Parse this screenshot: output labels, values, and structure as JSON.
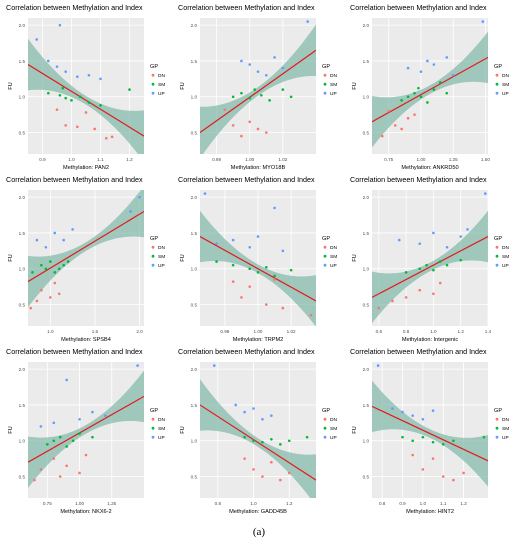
{
  "caption": "(a)",
  "legend": {
    "title": "GP",
    "labels": [
      "DN",
      "SM",
      "UP"
    ]
  },
  "colors": {
    "DN": "#F8766D",
    "SM": "#00BA38",
    "UP": "#619CFF",
    "fit": "#E41A1C",
    "band": "#7FB8A8",
    "panel_bg": "#EBEBEB",
    "grid": "#FFFFFF"
  },
  "chart_data": [
    {
      "type": "scatter",
      "title": "Correlation between Methylation and Index",
      "xlabel": "Methylation: PAN2",
      "ylabel": "FU",
      "xlim": [
        0.85,
        1.25
      ],
      "ylim": [
        0.2,
        2.1
      ],
      "xticks": [
        "0.9",
        "1.0",
        "1.1",
        "1.2"
      ],
      "yticks": [
        "0.5",
        "1.0",
        "1.5",
        "2.0"
      ],
      "fit": [
        [
          0.85,
          1.45
        ],
        [
          1.25,
          0.45
        ]
      ],
      "points": {
        "DN": [
          [
            0.95,
            0.82
          ],
          [
            1.02,
            0.58
          ],
          [
            1.05,
            0.78
          ],
          [
            1.08,
            0.55
          ],
          [
            1.12,
            0.42
          ],
          [
            1.14,
            0.44
          ],
          [
            0.98,
            0.6
          ]
        ],
        "SM": [
          [
            0.92,
            1.05
          ],
          [
            0.96,
            1.02
          ],
          [
            0.98,
            0.98
          ],
          [
            1.0,
            0.95
          ],
          [
            1.03,
            1.0
          ],
          [
            1.06,
            0.92
          ],
          [
            1.1,
            0.88
          ],
          [
            1.2,
            1.1
          ],
          [
            0.97,
            1.12
          ]
        ],
        "UP": [
          [
            0.88,
            1.8
          ],
          [
            0.92,
            1.5
          ],
          [
            0.95,
            1.42
          ],
          [
            0.98,
            1.35
          ],
          [
            1.02,
            1.28
          ],
          [
            1.06,
            1.3
          ],
          [
            1.1,
            1.25
          ],
          [
            0.96,
            2.0
          ]
        ]
      }
    },
    {
      "type": "scatter",
      "title": "Correlation between Methylation and Index",
      "xlabel": "Methylation: MYO18B",
      "ylabel": "FU",
      "xlim": [
        0.97,
        1.04
      ],
      "ylim": [
        0.2,
        2.1
      ],
      "xticks": [
        "0.98",
        "1.00",
        "1.02"
      ],
      "yticks": [
        "0.5",
        "1.0",
        "1.5",
        "2.0"
      ],
      "fit": [
        [
          0.97,
          0.5
        ],
        [
          1.04,
          1.65
        ]
      ],
      "points": {
        "DN": [
          [
            0.985,
            0.82
          ],
          [
            0.99,
            0.6
          ],
          [
            0.995,
            0.45
          ],
          [
            1.0,
            0.65
          ],
          [
            1.005,
            0.55
          ],
          [
            1.01,
            0.5
          ]
        ],
        "SM": [
          [
            0.99,
            1.0
          ],
          [
            0.995,
            1.05
          ],
          [
            1.0,
            0.98
          ],
          [
            1.003,
            1.1
          ],
          [
            1.007,
            1.02
          ],
          [
            1.012,
            0.95
          ],
          [
            1.02,
            1.1
          ],
          [
            1.025,
            1.0
          ]
        ],
        "UP": [
          [
            0.995,
            1.5
          ],
          [
            1.0,
            1.45
          ],
          [
            1.005,
            1.35
          ],
          [
            1.01,
            1.3
          ],
          [
            1.015,
            1.55
          ],
          [
            1.02,
            1.4
          ],
          [
            1.035,
            2.05
          ]
        ]
      }
    },
    {
      "type": "scatter",
      "title": "Correlation between Methylation and Index",
      "xlabel": "Methylation: ANKRD50",
      "ylabel": "FU",
      "xlim": [
        0.62,
        1.52
      ],
      "ylim": [
        0.2,
        2.1
      ],
      "xticks": [
        "0.75",
        "1.00",
        "1.25",
        "1.50"
      ],
      "yticks": [
        "0.5",
        "1.0",
        "1.5",
        "2.0"
      ],
      "fit": [
        [
          0.62,
          0.65
        ],
        [
          1.52,
          1.55
        ]
      ],
      "points": {
        "DN": [
          [
            0.7,
            0.45
          ],
          [
            0.8,
            0.6
          ],
          [
            0.85,
            0.55
          ],
          [
            0.9,
            0.7
          ],
          [
            0.95,
            0.75
          ],
          [
            0.75,
            0.8
          ]
        ],
        "SM": [
          [
            0.85,
            0.95
          ],
          [
            0.9,
            1.0
          ],
          [
            0.95,
            1.05
          ],
          [
            1.0,
            1.0
          ],
          [
            1.05,
            0.92
          ],
          [
            1.1,
            1.1
          ],
          [
            1.15,
            1.2
          ],
          [
            1.2,
            1.05
          ],
          [
            0.98,
            1.12
          ]
        ],
        "UP": [
          [
            0.9,
            1.4
          ],
          [
            1.0,
            1.35
          ],
          [
            1.05,
            1.5
          ],
          [
            1.1,
            1.45
          ],
          [
            1.2,
            1.55
          ],
          [
            1.25,
            1.3
          ],
          [
            1.48,
            2.05
          ]
        ]
      }
    },
    {
      "type": "scatter",
      "title": "Correlation between Methylation and Index",
      "xlabel": "Methylation: SPSB4",
      "ylabel": "FU",
      "xlim": [
        0.75,
        2.05
      ],
      "ylim": [
        0.2,
        2.1
      ],
      "xticks": [
        "1.0",
        "1.5",
        "2.0"
      ],
      "yticks": [
        "0.5",
        "1.0",
        "1.5",
        "2.0"
      ],
      "fit": [
        [
          0.75,
          0.82
        ],
        [
          2.05,
          1.8
        ]
      ],
      "points": {
        "DN": [
          [
            0.78,
            0.45
          ],
          [
            0.85,
            0.55
          ],
          [
            0.9,
            0.7
          ],
          [
            1.0,
            0.6
          ],
          [
            1.05,
            0.8
          ],
          [
            1.1,
            0.65
          ]
        ],
        "SM": [
          [
            0.8,
            0.95
          ],
          [
            0.9,
            1.05
          ],
          [
            0.95,
            1.0
          ],
          [
            1.0,
            1.1
          ],
          [
            1.05,
            0.95
          ],
          [
            1.1,
            1.0
          ],
          [
            1.15,
            1.05
          ],
          [
            1.2,
            1.1
          ]
        ],
        "UP": [
          [
            0.85,
            1.4
          ],
          [
            0.95,
            1.3
          ],
          [
            1.05,
            1.5
          ],
          [
            1.15,
            1.4
          ],
          [
            1.25,
            1.55
          ],
          [
            1.9,
            1.8
          ],
          [
            2.0,
            2.0
          ]
        ]
      }
    },
    {
      "type": "scatter",
      "title": "Correlation between Methylation and Index",
      "xlabel": "Methylation: TRPM2",
      "ylabel": "FU",
      "xlim": [
        0.965,
        1.035
      ],
      "ylim": [
        0.2,
        2.1
      ],
      "xticks": [
        "0.98",
        "1.00",
        "1.02"
      ],
      "yticks": [
        "0.5",
        "1.0",
        "1.5",
        "2.0"
      ],
      "fit": [
        [
          0.965,
          1.45
        ],
        [
          1.035,
          0.55
        ]
      ],
      "points": {
        "DN": [
          [
            0.985,
            0.82
          ],
          [
            0.99,
            0.6
          ],
          [
            0.995,
            0.75
          ],
          [
            1.005,
            0.5
          ],
          [
            1.01,
            0.85
          ],
          [
            1.015,
            0.45
          ],
          [
            1.032,
            0.35
          ]
        ],
        "SM": [
          [
            0.975,
            1.1
          ],
          [
            0.985,
            1.05
          ],
          [
            0.995,
            1.0
          ],
          [
            1.0,
            0.95
          ],
          [
            1.005,
            1.02
          ],
          [
            1.01,
            0.9
          ],
          [
            1.02,
            0.98
          ]
        ],
        "UP": [
          [
            0.968,
            2.05
          ],
          [
            0.975,
            1.35
          ],
          [
            0.985,
            1.4
          ],
          [
            0.995,
            1.3
          ],
          [
            1.0,
            1.45
          ],
          [
            1.01,
            1.85
          ],
          [
            1.015,
            1.25
          ]
        ]
      }
    },
    {
      "type": "scatter",
      "title": "Correlation between Methylation and Index",
      "xlabel": "Methylation: Intergenic",
      "ylabel": "FU",
      "xlim": [
        0.55,
        1.4
      ],
      "ylim": [
        0.2,
        2.1
      ],
      "xticks": [
        "0.6",
        "0.8",
        "1.0",
        "1.2",
        "1.4"
      ],
      "yticks": [
        "0.5",
        "1.0",
        "1.5",
        "2.0"
      ],
      "fit": [
        [
          0.55,
          0.6
        ],
        [
          1.4,
          1.45
        ]
      ],
      "points": {
        "DN": [
          [
            0.6,
            0.45
          ],
          [
            0.7,
            0.55
          ],
          [
            0.8,
            0.6
          ],
          [
            0.9,
            0.7
          ],
          [
            1.0,
            0.65
          ],
          [
            1.05,
            0.8
          ]
        ],
        "SM": [
          [
            0.8,
            0.95
          ],
          [
            0.9,
            1.0
          ],
          [
            0.95,
            1.05
          ],
          [
            1.0,
            0.98
          ],
          [
            1.05,
            1.1
          ],
          [
            1.1,
            1.05
          ],
          [
            1.2,
            1.12
          ]
        ],
        "UP": [
          [
            0.75,
            1.4
          ],
          [
            0.9,
            1.35
          ],
          [
            1.0,
            1.5
          ],
          [
            1.1,
            1.3
          ],
          [
            1.2,
            1.45
          ],
          [
            1.25,
            1.55
          ],
          [
            1.38,
            2.05
          ]
        ]
      }
    },
    {
      "type": "scatter",
      "title": "Correlation between Methylation and Index",
      "xlabel": "Methylation: NKX6-2",
      "ylabel": "FU",
      "xlim": [
        0.6,
        1.5
      ],
      "ylim": [
        0.2,
        2.1
      ],
      "xticks": [
        "0.75",
        "1.00",
        "1.25"
      ],
      "yticks": [
        "0.5",
        "1.0",
        "1.5",
        "2.0"
      ],
      "fit": [
        [
          0.6,
          0.7
        ],
        [
          1.5,
          1.62
        ]
      ],
      "points": {
        "DN": [
          [
            0.65,
            0.45
          ],
          [
            0.7,
            0.6
          ],
          [
            0.8,
            0.75
          ],
          [
            0.85,
            0.5
          ],
          [
            0.9,
            0.65
          ],
          [
            1.0,
            0.55
          ],
          [
            1.05,
            0.8
          ]
        ],
        "SM": [
          [
            0.75,
            0.95
          ],
          [
            0.8,
            1.0
          ],
          [
            0.85,
            1.05
          ],
          [
            0.9,
            0.92
          ],
          [
            0.95,
            1.0
          ],
          [
            1.0,
            1.1
          ],
          [
            1.1,
            1.05
          ]
        ],
        "UP": [
          [
            0.7,
            1.2
          ],
          [
            0.8,
            1.25
          ],
          [
            0.9,
            1.85
          ],
          [
            1.0,
            1.3
          ],
          [
            1.1,
            1.4
          ],
          [
            1.2,
            1.35
          ],
          [
            1.45,
            2.05
          ]
        ]
      }
    },
    {
      "type": "scatter",
      "title": "Correlation between Methylation and Index",
      "xlabel": "Methylation: GADD45B",
      "ylabel": "FU",
      "xlim": [
        0.7,
        1.35
      ],
      "ylim": [
        0.2,
        2.1
      ],
      "xticks": [
        "0.8",
        "1.0",
        "1.2"
      ],
      "yticks": [
        "0.5",
        "1.0",
        "1.5",
        "2.0"
      ],
      "fit": [
        [
          0.7,
          1.5
        ],
        [
          1.35,
          0.45
        ]
      ],
      "points": {
        "DN": [
          [
            0.95,
            0.75
          ],
          [
            1.0,
            0.6
          ],
          [
            1.05,
            0.5
          ],
          [
            1.1,
            0.7
          ],
          [
            1.15,
            0.45
          ],
          [
            1.2,
            0.55
          ]
        ],
        "SM": [
          [
            0.95,
            1.05
          ],
          [
            1.0,
            1.0
          ],
          [
            1.05,
            0.98
          ],
          [
            1.1,
            1.02
          ],
          [
            1.15,
            0.95
          ],
          [
            1.2,
            1.0
          ],
          [
            1.3,
            1.05
          ]
        ],
        "UP": [
          [
            0.78,
            2.05
          ],
          [
            0.9,
            1.5
          ],
          [
            0.95,
            1.4
          ],
          [
            1.0,
            1.45
          ],
          [
            1.05,
            1.3
          ],
          [
            1.1,
            1.35
          ]
        ]
      }
    },
    {
      "type": "scatter",
      "title": "Correlation between Methylation and Index",
      "xlabel": "Methylation: HINT2",
      "ylabel": "FU",
      "xlim": [
        0.75,
        1.32
      ],
      "ylim": [
        0.2,
        2.1
      ],
      "xticks": [
        "0.8",
        "0.9",
        "1.0",
        "1.1",
        "1.2"
      ],
      "yticks": [
        "0.5",
        "1.0",
        "1.5",
        "2.0"
      ],
      "fit": [
        [
          0.75,
          1.48
        ],
        [
          1.32,
          0.72
        ]
      ],
      "points": {
        "DN": [
          [
            0.95,
            0.8
          ],
          [
            1.0,
            0.6
          ],
          [
            1.05,
            0.75
          ],
          [
            1.1,
            0.5
          ],
          [
            1.15,
            0.45
          ],
          [
            1.2,
            0.55
          ]
        ],
        "SM": [
          [
            0.9,
            1.05
          ],
          [
            0.95,
            1.0
          ],
          [
            1.0,
            1.05
          ],
          [
            1.05,
            0.98
          ],
          [
            1.1,
            0.95
          ],
          [
            1.15,
            1.0
          ],
          [
            1.3,
            1.05
          ]
        ],
        "UP": [
          [
            0.78,
            2.05
          ],
          [
            0.85,
            1.45
          ],
          [
            0.9,
            1.4
          ],
          [
            0.95,
            1.35
          ],
          [
            1.0,
            1.3
          ],
          [
            1.05,
            1.42
          ]
        ]
      }
    }
  ]
}
